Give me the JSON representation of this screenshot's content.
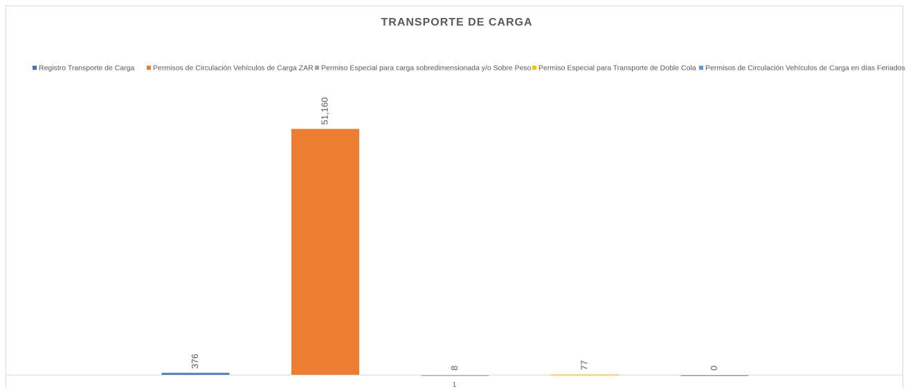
{
  "chart_data": {
    "type": "bar",
    "title": "TRANSPORTE DE CARGA",
    "categories": [
      "1"
    ],
    "series": [
      {
        "name": "Registro Transporte de Carga",
        "color": "#4472c4",
        "values": [
          376
        ],
        "value_labels": [
          "376"
        ]
      },
      {
        "name": "Permisos de Circulación Vehículos de Carga ZAR",
        "color": "#ed7d31",
        "values": [
          51160
        ],
        "value_labels": [
          "51,160"
        ]
      },
      {
        "name": "Permiso Especial para carga sobredimensionada y/o Sobre Peso",
        "color": "#a5a5a5",
        "values": [
          8
        ],
        "value_labels": [
          "8"
        ]
      },
      {
        "name": "Permiso Especial para Transporte de Doble Cola",
        "color": "#ffc000",
        "values": [
          77
        ],
        "value_labels": [
          "77"
        ]
      },
      {
        "name": "Permisos de Circulación Vehículos de Carga en días Feriados",
        "color": "#5b9bd5",
        "values": [
          0
        ],
        "value_labels": [
          "0"
        ]
      }
    ],
    "ylim": [
      0,
      60000
    ],
    "legend": "top"
  }
}
